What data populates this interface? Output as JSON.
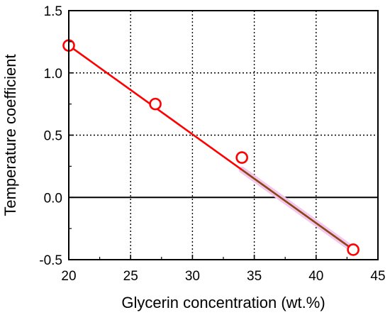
{
  "chart_data": {
    "type": "scatter",
    "title": "",
    "xlabel": "Glycerin concentration (wt.%)",
    "ylabel": "Temperature coefficient",
    "xlim": [
      20,
      45
    ],
    "ylim": [
      -0.5,
      1.5
    ],
    "x_ticks": [
      "20",
      "25",
      "30",
      "35",
      "40",
      "45"
    ],
    "y_ticks": [
      "-0.5",
      "0.0",
      "0.5",
      "1.0",
      "1.5"
    ],
    "grid": true,
    "grid_style": "dotted",
    "zero_line": true,
    "colors": {
      "marker": "#ff0000",
      "line_positive": "#ff0000",
      "line_negative": "#8b4513",
      "axis": "#000000"
    },
    "series": [
      {
        "marker": "open-circle",
        "points": [
          {
            "x": 20,
            "y": 1.22
          },
          {
            "x": 27,
            "y": 0.75
          },
          {
            "x": 34,
            "y": 0.32
          },
          {
            "x": 43,
            "y": -0.42
          }
        ]
      }
    ],
    "fit_line": {
      "x_start": 20,
      "y_start": 1.22,
      "x_end": 43,
      "y_end": -0.42,
      "x_color_change": 34
    }
  }
}
